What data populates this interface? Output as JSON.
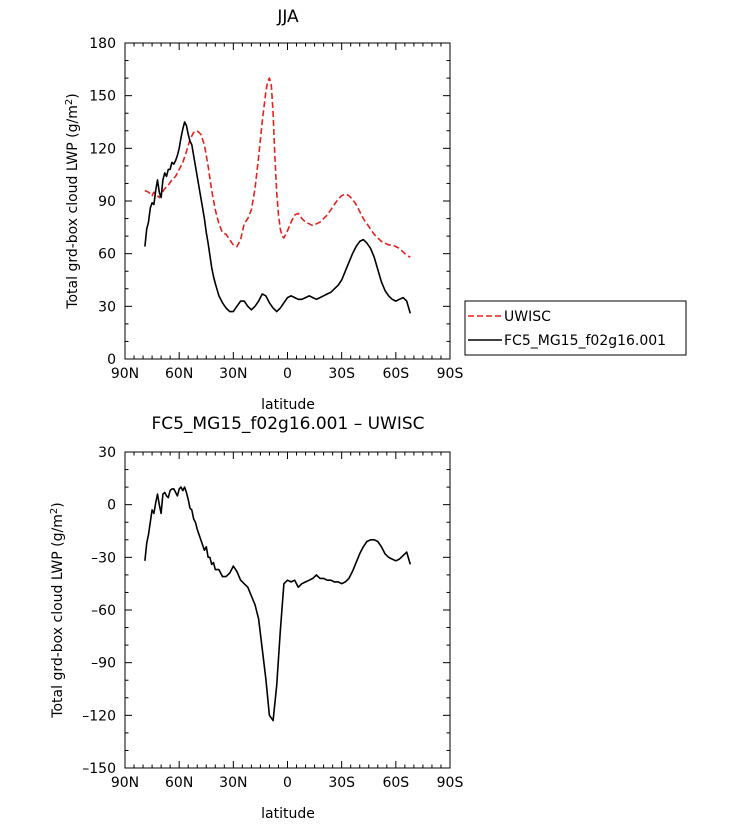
{
  "chart_data": [
    {
      "type": "line",
      "title": "JJA",
      "xlabel": "latitude",
      "ylabel_main": "Total grd-box cloud LWP (g/m",
      "ylabel_sup": "2",
      "ylabel_close": ")",
      "xlim": [
        90,
        -90
      ],
      "ylim": [
        0,
        180
      ],
      "xticks": [
        90,
        60,
        30,
        0,
        -30,
        -60,
        -90
      ],
      "xtick_labels": [
        "90N",
        "60N",
        "30N",
        "0",
        "30S",
        "60S",
        "90S"
      ],
      "yticks": [
        0,
        30,
        60,
        90,
        120,
        150,
        180
      ],
      "ytick_labels": [
        "0",
        "30",
        "60",
        "90",
        "120",
        "150",
        "180"
      ],
      "legend": "right",
      "series": [
        {
          "name": "UWISC",
          "color": "#e8201c",
          "dash": "dashed",
          "x": [
            79,
            77,
            75,
            74,
            72,
            71,
            70,
            68,
            66,
            64,
            62,
            60,
            58,
            56,
            54,
            52,
            50,
            48,
            46,
            44,
            42,
            40,
            38,
            36,
            34,
            32,
            30,
            28,
            26,
            24,
            22,
            20,
            18,
            16,
            14,
            12,
            11,
            10,
            9,
            8,
            7,
            6,
            5,
            4,
            3,
            2,
            0,
            -2,
            -4,
            -6,
            -8,
            -10,
            -12,
            -14,
            -16,
            -18,
            -20,
            -22,
            -24,
            -26,
            -28,
            -30,
            -32,
            -34,
            -36,
            -38,
            -40,
            -42,
            -44,
            -46,
            -48,
            -50,
            -52,
            -54,
            -56,
            -58,
            -60,
            -62,
            -64,
            -66,
            -68
          ],
          "values": [
            96,
            95,
            93,
            95,
            93,
            92,
            94,
            97,
            99,
            102,
            104,
            108,
            112,
            118,
            125,
            129,
            130,
            128,
            122,
            110,
            96,
            85,
            77,
            72,
            71,
            68,
            65,
            64,
            68,
            77,
            80,
            85,
            97,
            115,
            135,
            152,
            158,
            160,
            156,
            140,
            115,
            95,
            82,
            74,
            70,
            69,
            73,
            78,
            82,
            83,
            80,
            78,
            77,
            76,
            77,
            78,
            80,
            82,
            85,
            88,
            91,
            93,
            94,
            93,
            91,
            88,
            84,
            80,
            77,
            74,
            71,
            69,
            67,
            66,
            65,
            65,
            64,
            63,
            61,
            59,
            58
          ]
        },
        {
          "name": "FC5_MG15_f02g16.001",
          "color": "#000000",
          "dash": "solid",
          "x": [
            79,
            78,
            77,
            76,
            75,
            74,
            73,
            72,
            71,
            70,
            69,
            68,
            67,
            66,
            65,
            64,
            63,
            62,
            61,
            60,
            59,
            58,
            57,
            56,
            55,
            54,
            53,
            52,
            51,
            50,
            49,
            48,
            47,
            46,
            45,
            44,
            43,
            42,
            41,
            40,
            38,
            36,
            34,
            32,
            30,
            28,
            26,
            24,
            22,
            20,
            18,
            16,
            14,
            12,
            10,
            8,
            6,
            4,
            2,
            0,
            -2,
            -4,
            -6,
            -8,
            -10,
            -12,
            -14,
            -16,
            -18,
            -20,
            -22,
            -24,
            -26,
            -28,
            -30,
            -32,
            -34,
            -36,
            -38,
            -40,
            -42,
            -44,
            -46,
            -48,
            -50,
            -52,
            -54,
            -56,
            -58,
            -60,
            -62,
            -64,
            -66,
            -68
          ],
          "values": [
            64,
            74,
            78,
            86,
            89,
            88,
            96,
            102,
            95,
            92,
            102,
            106,
            104,
            108,
            108,
            112,
            111,
            113,
            116,
            120,
            126,
            131,
            135,
            133,
            128,
            124,
            122,
            116,
            110,
            104,
            98,
            92,
            86,
            80,
            72,
            66,
            59,
            52,
            47,
            43,
            36,
            32,
            29,
            27,
            27,
            30,
            33,
            33,
            30,
            28,
            30,
            33,
            37,
            36,
            32,
            29,
            27,
            29,
            32,
            35,
            36,
            35,
            34,
            34,
            35,
            36,
            35,
            34,
            35,
            36,
            37,
            38,
            40,
            42,
            45,
            50,
            55,
            60,
            64,
            67,
            68,
            66,
            63,
            58,
            51,
            44,
            39,
            36,
            34,
            33,
            34,
            35,
            33,
            26
          ]
        }
      ]
    },
    {
      "type": "line",
      "title": "FC5_MG15_f02g16.001 – UWISC",
      "xlabel": "latitude",
      "ylabel_main": "Total grd-box cloud LWP (g/m",
      "ylabel_sup": "2",
      "ylabel_close": ")",
      "xlim": [
        90,
        -90
      ],
      "ylim": [
        -150,
        30
      ],
      "xticks": [
        90,
        60,
        30,
        0,
        -30,
        -60,
        -90
      ],
      "xtick_labels": [
        "90N",
        "60N",
        "30N",
        "0",
        "30S",
        "60S",
        "90S"
      ],
      "yticks": [
        -150,
        -120,
        -90,
        -60,
        -30,
        0,
        30
      ],
      "ytick_labels": [
        "–150",
        "–120",
        "–90",
        "–60",
        "–30",
        "0",
        "30"
      ],
      "series": [
        {
          "color": "#000000",
          "dash": "solid",
          "x": [
            79,
            78,
            77,
            76,
            75,
            74,
            73,
            72,
            71,
            70,
            69,
            68,
            67,
            66,
            65,
            64,
            63,
            62,
            61,
            60,
            59,
            58,
            57,
            56,
            55,
            54,
            53,
            52,
            51,
            50,
            49,
            48,
            47,
            46,
            45,
            44,
            43,
            42,
            41,
            40,
            38,
            36,
            34,
            32,
            30,
            28,
            26,
            24,
            22,
            20,
            18,
            16,
            14,
            12,
            10,
            8,
            6,
            4,
            2,
            0,
            -2,
            -4,
            -6,
            -8,
            -10,
            -12,
            -14,
            -16,
            -18,
            -20,
            -22,
            -24,
            -26,
            -28,
            -30,
            -32,
            -34,
            -36,
            -38,
            -40,
            -42,
            -44,
            -46,
            -48,
            -50,
            -52,
            -54,
            -56,
            -58,
            -60,
            -62,
            -64,
            -66,
            -68
          ],
          "values": [
            -32,
            -22,
            -17,
            -10,
            -3,
            -5,
            1,
            6,
            0,
            -5,
            6,
            7,
            5,
            4,
            8,
            9,
            9,
            7,
            5,
            9,
            10,
            8,
            10,
            7,
            3,
            -2,
            -3,
            -8,
            -10,
            -14,
            -17,
            -20,
            -23,
            -26,
            -24,
            -30,
            -30,
            -34,
            -33,
            -37,
            -37,
            -41,
            -41,
            -39,
            -35,
            -38,
            -43,
            -45,
            -47,
            -52,
            -57,
            -65,
            -82,
            -99,
            -120,
            -123,
            -103,
            -72,
            -45,
            -43,
            -44,
            -43,
            -47,
            -45,
            -44,
            -43,
            -42,
            -40,
            -42,
            -42,
            -43,
            -43,
            -44,
            -44,
            -45,
            -44,
            -42,
            -38,
            -33,
            -28,
            -24,
            -21,
            -20,
            -20,
            -21,
            -24,
            -28,
            -30,
            -31,
            -32,
            -31,
            -29,
            -27,
            -34
          ]
        }
      ]
    }
  ]
}
